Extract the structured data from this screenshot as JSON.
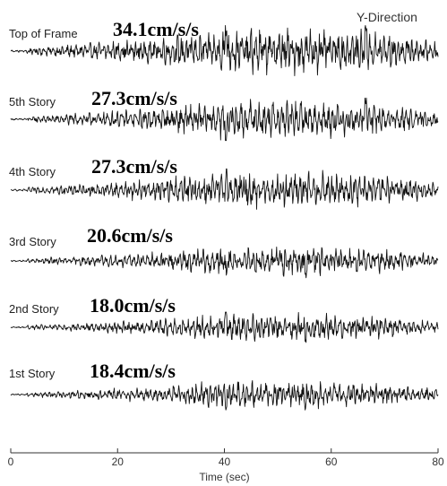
{
  "chart_data": {
    "type": "line",
    "title": "",
    "direction_label": "Y-Direction",
    "xlabel": "Time (sec)",
    "ylabel": "",
    "xlim": [
      0,
      80
    ],
    "x_ticks": [
      "0",
      "20",
      "40",
      "60",
      "80"
    ],
    "grid": false,
    "series": [
      {
        "name": "Top of Frame",
        "peak_label": "34.1cm/s/s",
        "peak": 34.1,
        "peak_unit": "cm/s/s"
      },
      {
        "name": "5th Story",
        "peak_label": "27.3cm/s/s",
        "peak": 27.3,
        "peak_unit": "cm/s/s"
      },
      {
        "name": "4th Story",
        "peak_label": "27.3cm/s/s",
        "peak": 27.3,
        "peak_unit": "cm/s/s"
      },
      {
        "name": "3rd Story",
        "peak_label": "20.6cm/s/s",
        "peak": 20.6,
        "peak_unit": "cm/s/s"
      },
      {
        "name": "2nd Story",
        "peak_label": "18.0cm/s/s",
        "peak": 18.0,
        "peak_unit": "cm/s/s"
      },
      {
        "name": "1st Story",
        "peak_label": "18.4cm/s/s",
        "peak": 18.4,
        "peak_unit": "cm/s/s"
      }
    ]
  }
}
